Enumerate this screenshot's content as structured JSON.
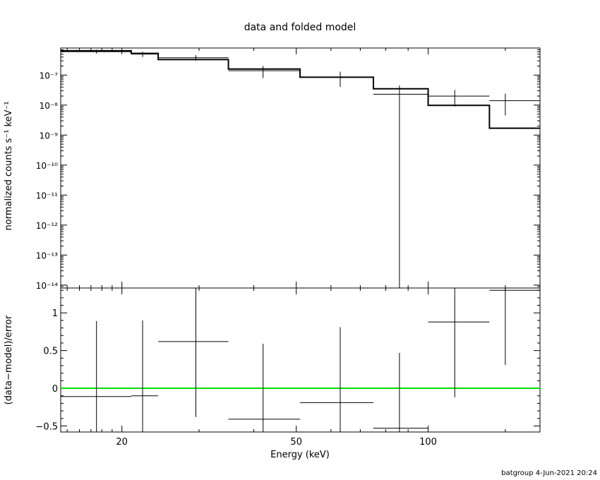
{
  "chart_data": [
    {
      "type": "line",
      "title": "data and folded model",
      "xlabel": "",
      "ylabel": "normalized counts s⁻¹ keV⁻¹",
      "x_scale": "log",
      "y_scale": "log",
      "xlim": [
        14.5,
        180
      ],
      "ylim": [
        8e-15,
        8e-07
      ],
      "xticks": [
        {
          "value": 20,
          "label": ""
        },
        {
          "value": 50,
          "label": ""
        },
        {
          "value": 100,
          "label": ""
        }
      ],
      "yticks": [
        {
          "value": 1e-14,
          "label": "10⁻¹⁴"
        },
        {
          "value": 1e-13,
          "label": "10⁻¹³"
        },
        {
          "value": 1e-12,
          "label": "10⁻¹²"
        },
        {
          "value": 1e-11,
          "label": "10⁻¹¹"
        },
        {
          "value": 1e-10,
          "label": "10⁻¹⁰"
        },
        {
          "value": 1e-09,
          "label": "10⁻⁹"
        },
        {
          "value": 1e-08,
          "label": "10⁻⁸"
        },
        {
          "value": 1e-07,
          "label": "10⁻⁷"
        }
      ],
      "series": [
        {
          "role": "data",
          "color": "#000000",
          "points": [
            {
              "x": 17.5,
              "xlo": 14.5,
              "xhi": 21.0,
              "y": 6e-07,
              "ylo": 5.2e-07,
              "yhi": 7e-07
            },
            {
              "x": 22.3,
              "xlo": 21.0,
              "xhi": 24.2,
              "y": 5e-07,
              "ylo": 4e-07,
              "yhi": 6e-07
            },
            {
              "x": 29.5,
              "xlo": 24.2,
              "xhi": 35.0,
              "y": 3.8e-07,
              "ylo": 3e-07,
              "yhi": 4.6e-07
            },
            {
              "x": 42.0,
              "xlo": 35.0,
              "xhi": 51.0,
              "y": 1.4e-07,
              "ylo": 8e-08,
              "yhi": 2e-07
            },
            {
              "x": 63.0,
              "xlo": 51.0,
              "xhi": 75.0,
              "y": 8.5e-08,
              "ylo": 4e-08,
              "yhi": 1.3e-07
            },
            {
              "x": 86.0,
              "xlo": 75.0,
              "xhi": 100.0,
              "y": 2.3e-08,
              "ylo": 8e-15,
              "yhi": 4.5e-08
            },
            {
              "x": 115.0,
              "xlo": 100.0,
              "xhi": 138.0,
              "y": 2e-08,
              "ylo": 9e-09,
              "yhi": 3.2e-08
            },
            {
              "x": 150.0,
              "xlo": 138.0,
              "xhi": 180.0,
              "y": 1.4e-08,
              "ylo": 4.5e-09,
              "yhi": 2.4e-08
            }
          ]
        },
        {
          "role": "model",
          "color": "#000000",
          "steps": [
            {
              "xlo": 14.5,
              "xhi": 21.0,
              "y": 6.5e-07
            },
            {
              "xlo": 21.0,
              "xhi": 24.2,
              "y": 5.3e-07
            },
            {
              "xlo": 24.2,
              "xhi": 35.0,
              "y": 3.3e-07
            },
            {
              "xlo": 35.0,
              "xhi": 51.0,
              "y": 1.6e-07
            },
            {
              "xlo": 51.0,
              "xhi": 75.0,
              "y": 8.5e-08
            },
            {
              "xlo": 75.0,
              "xhi": 100.0,
              "y": 3.5e-08
            },
            {
              "xlo": 100.0,
              "xhi": 138.0,
              "y": 9.8e-09
            },
            {
              "xlo": 138.0,
              "xhi": 180.0,
              "y": 1.7e-09
            }
          ]
        }
      ]
    },
    {
      "type": "scatter",
      "title": "",
      "xlabel": "Energy (keV)",
      "ylabel": "(data−model)/error",
      "x_scale": "log",
      "xlim": [
        14.5,
        180
      ],
      "ylim": [
        -0.58,
        1.33
      ],
      "xticks": [
        {
          "value": 20,
          "label": "20"
        },
        {
          "value": 50,
          "label": "50"
        },
        {
          "value": 100,
          "label": "100"
        }
      ],
      "yticks": [
        {
          "value": -0.5,
          "label": "−0.5"
        },
        {
          "value": 0,
          "label": "0"
        },
        {
          "value": 0.5,
          "label": "0.5"
        },
        {
          "value": 1,
          "label": "1"
        }
      ],
      "zero_line_color": "#00dd00",
      "series": [
        {
          "role": "residuals",
          "color": "#000000",
          "points": [
            {
              "x": 17.5,
              "xlo": 14.5,
              "xhi": 21.0,
              "y": -0.11,
              "ylo": -0.58,
              "yhi": 0.89
            },
            {
              "x": 22.3,
              "xlo": 21.0,
              "xhi": 24.2,
              "y": -0.1,
              "ylo": -0.58,
              "yhi": 0.9
            },
            {
              "x": 29.5,
              "xlo": 24.2,
              "xhi": 35.0,
              "y": 0.62,
              "ylo": -0.38,
              "yhi": 1.33
            },
            {
              "x": 42.0,
              "xlo": 35.0,
              "xhi": 51.0,
              "y": -0.41,
              "ylo": -0.58,
              "yhi": 0.59
            },
            {
              "x": 63.0,
              "xlo": 51.0,
              "xhi": 75.0,
              "y": -0.19,
              "ylo": -0.58,
              "yhi": 0.81
            },
            {
              "x": 86.0,
              "xlo": 75.0,
              "xhi": 100.0,
              "y": -0.53,
              "ylo": -0.58,
              "yhi": 0.47
            },
            {
              "x": 115.0,
              "xlo": 100.0,
              "xhi": 138.0,
              "y": 0.88,
              "ylo": -0.12,
              "yhi": 1.33
            },
            {
              "x": 150.0,
              "xlo": 138.0,
              "xhi": 180.0,
              "y": 1.3,
              "ylo": 0.31,
              "yhi": 1.33
            }
          ]
        }
      ]
    }
  ],
  "footer": "batgroup  4-Jun-2021 20:24"
}
